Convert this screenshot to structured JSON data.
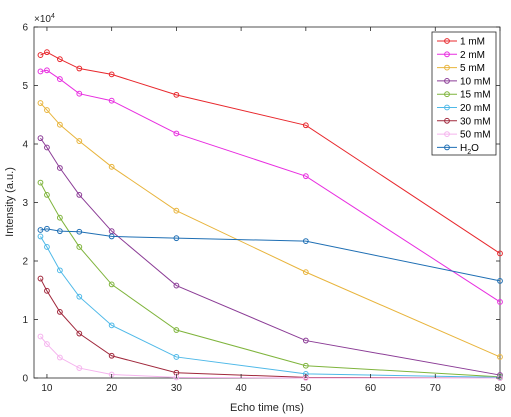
{
  "chart_data": {
    "type": "line",
    "xlabel": "Echo time (ms)",
    "ylabel": "Intensity (a.u.)",
    "y_exponent_label": "×10",
    "y_exponent_power": "4",
    "xlim": [
      8,
      80
    ],
    "ylim": [
      0,
      6
    ],
    "xticks": [
      10,
      20,
      30,
      40,
      50,
      60,
      70,
      80
    ],
    "yticks": [
      0,
      1,
      2,
      3,
      4,
      5,
      6
    ],
    "grid": false,
    "legend_position": "top-right",
    "x": [
      9,
      10,
      12,
      15,
      20,
      30,
      50,
      80
    ],
    "series": [
      {
        "name": "1 mM",
        "color": "#e8282d",
        "values": [
          5.52,
          5.57,
          5.45,
          5.29,
          5.19,
          4.84,
          4.32,
          2.13
        ]
      },
      {
        "name": "2 mM",
        "color": "#e82ee0",
        "values": [
          5.24,
          5.26,
          5.11,
          4.86,
          4.74,
          4.18,
          3.45,
          1.3
        ]
      },
      {
        "name": "5 mM",
        "color": "#e8b43c",
        "values": [
          4.7,
          4.58,
          4.33,
          4.05,
          3.61,
          2.86,
          1.81,
          0.36
        ]
      },
      {
        "name": "10 mM",
        "color": "#8b3c96",
        "values": [
          4.1,
          3.94,
          3.59,
          3.13,
          2.51,
          1.58,
          0.64,
          0.05
        ]
      },
      {
        "name": "15 mM",
        "color": "#7fb43c",
        "values": [
          3.34,
          3.13,
          2.74,
          2.24,
          1.6,
          0.82,
          0.21,
          0.02
        ]
      },
      {
        "name": "20 mM",
        "color": "#4fb9e8",
        "values": [
          2.42,
          2.24,
          1.84,
          1.39,
          0.9,
          0.36,
          0.07,
          0.01
        ]
      },
      {
        "name": "30 mM",
        "color": "#a0283c",
        "values": [
          1.7,
          1.49,
          1.13,
          0.76,
          0.38,
          0.09,
          0.01,
          0.0
        ]
      },
      {
        "name": "50 mM",
        "color": "#f5b4ee",
        "values": [
          0.71,
          0.58,
          0.35,
          0.17,
          0.06,
          0.01,
          0.0,
          0.0
        ]
      },
      {
        "name": "H2O",
        "color": "#1f6fb4",
        "values": [
          2.53,
          2.55,
          2.51,
          2.5,
          2.42,
          2.39,
          2.34,
          1.66
        ]
      }
    ]
  }
}
